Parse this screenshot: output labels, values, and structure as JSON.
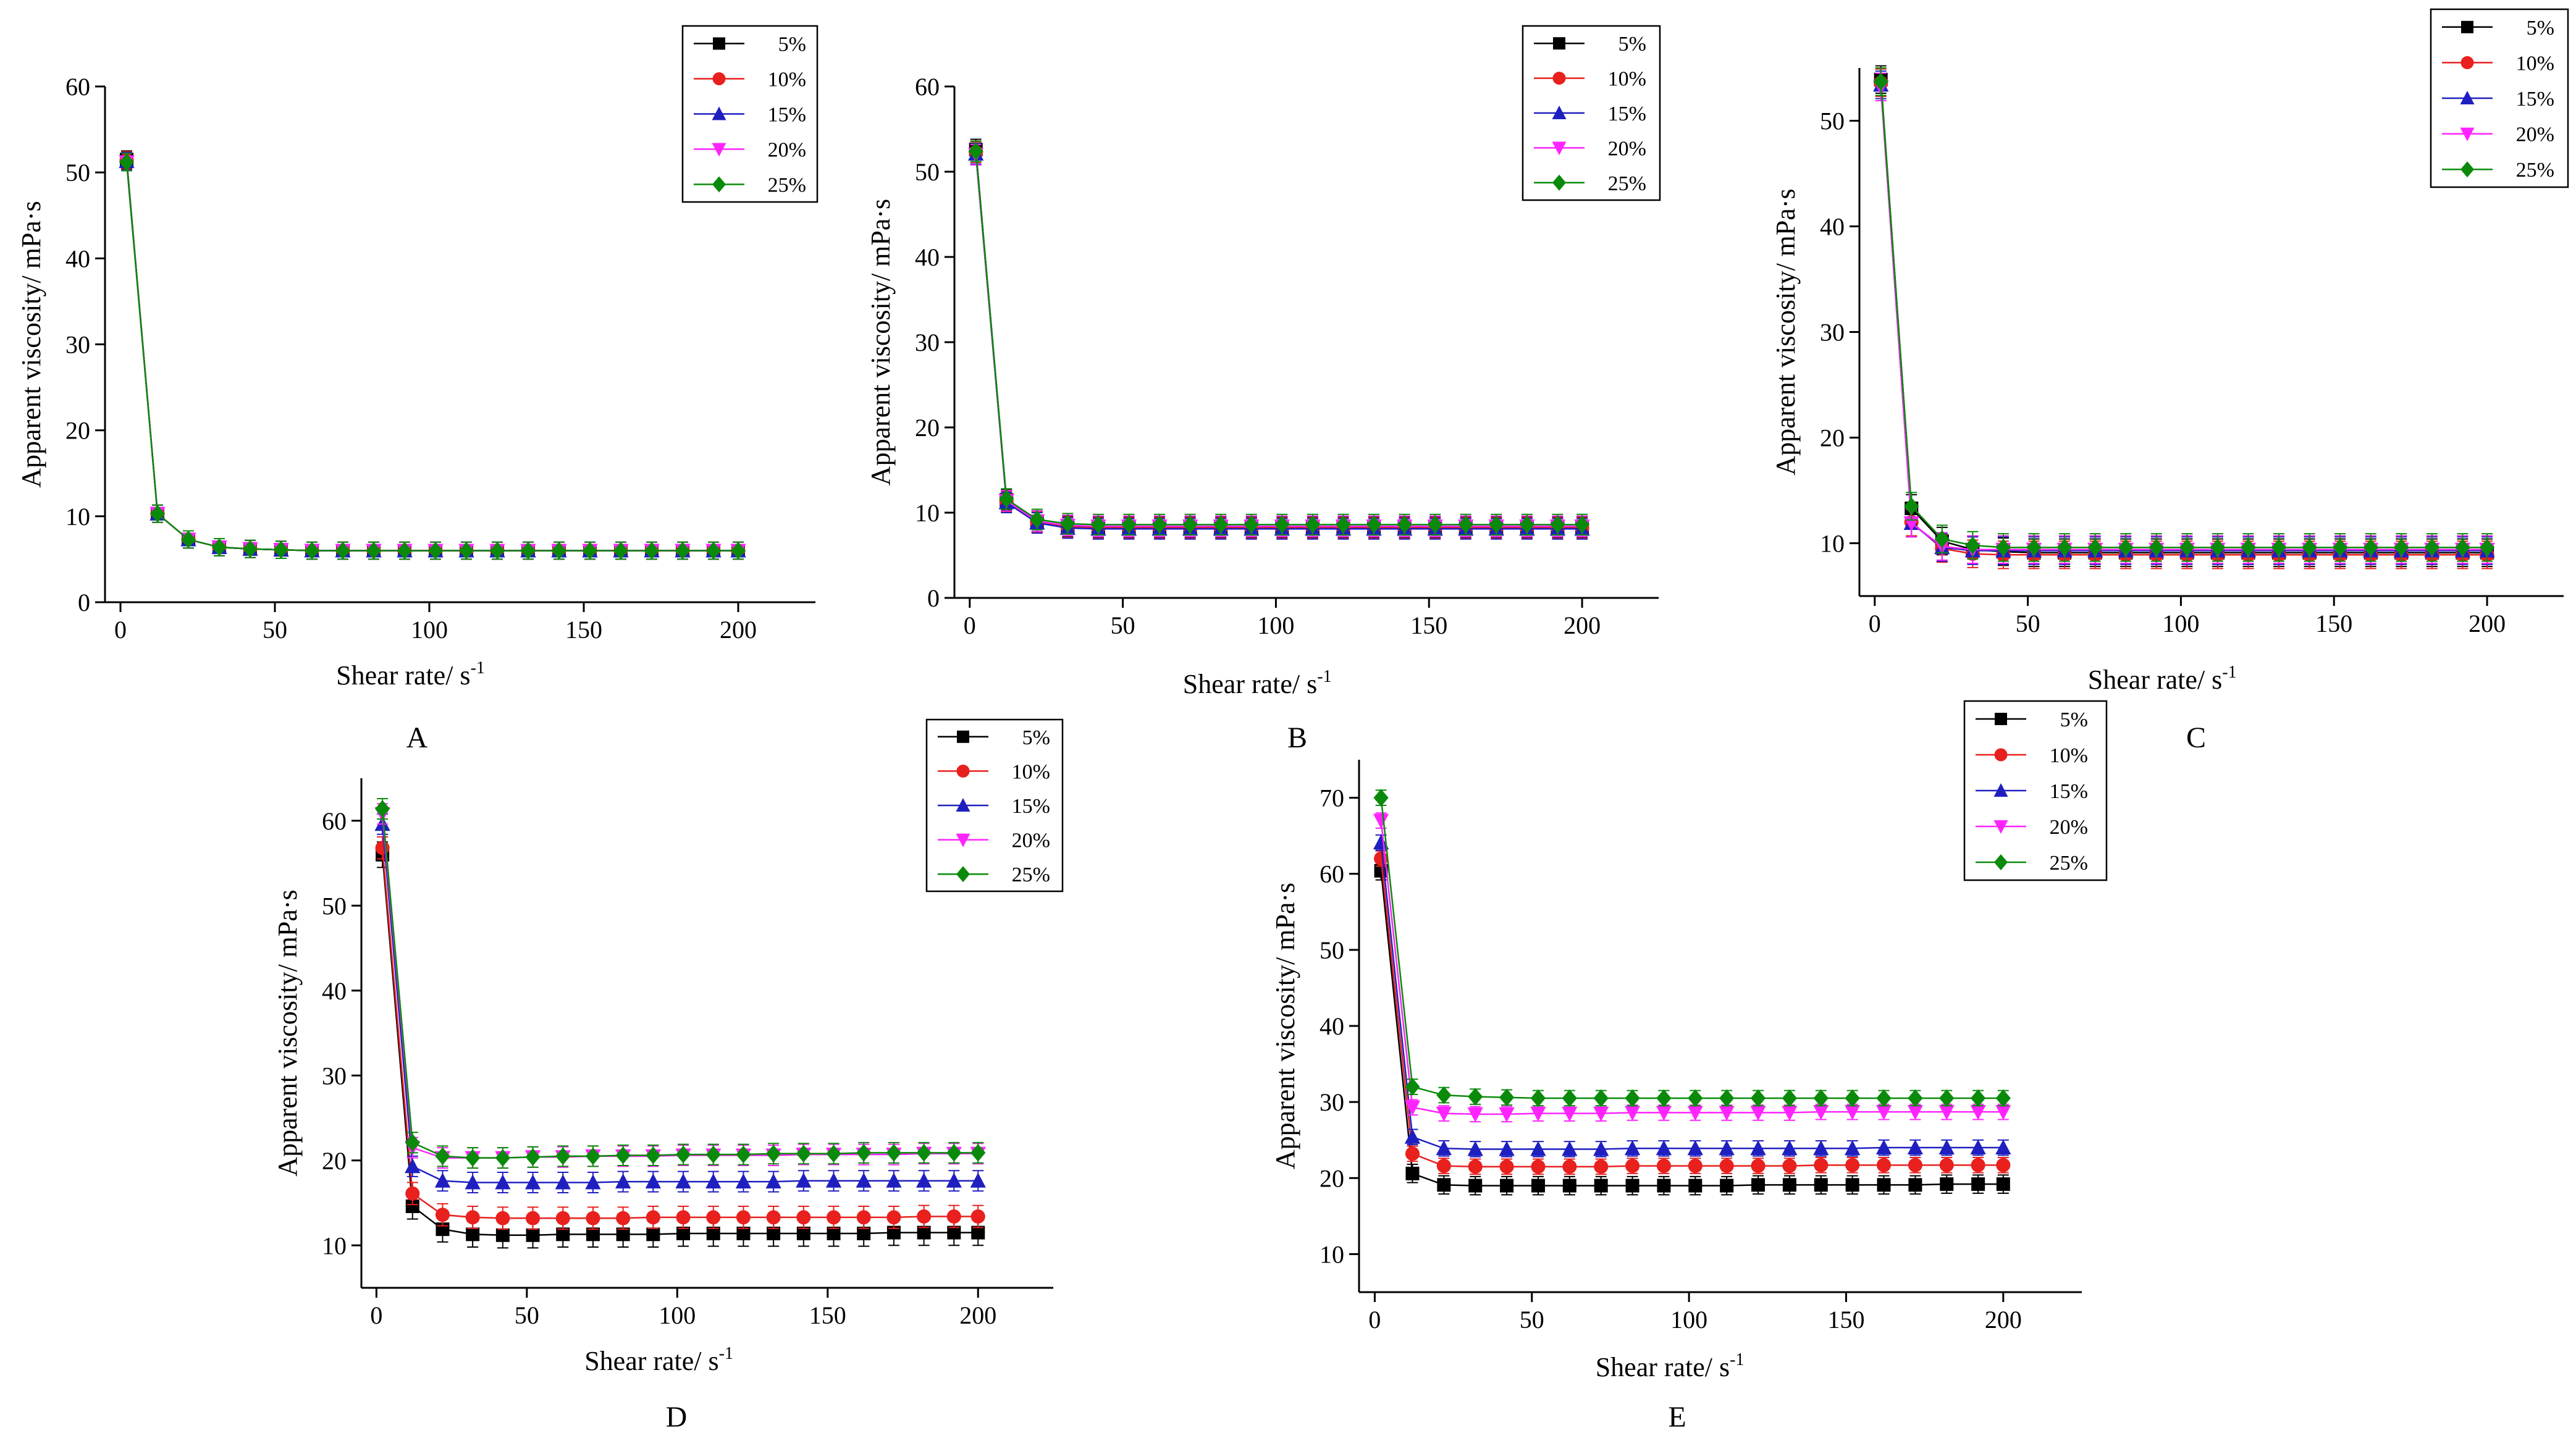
{
  "figure": {
    "legend_entries": [
      "5%",
      "10%",
      "15%",
      "20%",
      "25%"
    ],
    "series_colors": [
      "#000000",
      "#e8201e",
      "#1f1fc0",
      "#ff24ff",
      "#0a8a0a"
    ],
    "marker_types": [
      "square",
      "circle",
      "triangle-up",
      "triangle-down",
      "diamond"
    ]
  },
  "chart_data": [
    {
      "panel": "A",
      "type": "line",
      "xlabel": "Shear rate/ s",
      "xlabel_sup": "-1",
      "ylabel": "Apparent viscosity/ mPa·s",
      "xlim": [
        -5,
        225
      ],
      "ylim": [
        0,
        60
      ],
      "xticks": [
        0,
        50,
        100,
        150,
        200
      ],
      "yticks": [
        0,
        10,
        20,
        30,
        40,
        50,
        60
      ],
      "legend_position": "top-right",
      "x": [
        2,
        12,
        22,
        32,
        42,
        52,
        62,
        72,
        82,
        92,
        102,
        112,
        122,
        132,
        142,
        152,
        162,
        172,
        182,
        192,
        200
      ],
      "series": [
        {
          "name": "5%",
          "values": [
            51.5,
            10.3,
            7.3,
            6.4,
            6.2,
            6.1,
            6.0,
            6.0,
            6.0,
            6.0,
            6.0,
            6.0,
            6.0,
            6.0,
            6.0,
            6.0,
            6.0,
            6.0,
            6.0,
            6.0,
            6.0
          ],
          "error": 1.0
        },
        {
          "name": "10%",
          "values": [
            51.4,
            10.3,
            7.3,
            6.4,
            6.2,
            6.1,
            6.0,
            6.0,
            6.0,
            6.0,
            6.0,
            6.0,
            6.0,
            6.0,
            6.0,
            6.0,
            6.0,
            6.0,
            6.0,
            6.0,
            6.0
          ],
          "error": 1.0
        },
        {
          "name": "15%",
          "values": [
            51.3,
            10.3,
            7.3,
            6.4,
            6.2,
            6.1,
            6.0,
            6.0,
            6.0,
            6.0,
            6.0,
            6.0,
            6.0,
            6.0,
            6.0,
            6.0,
            6.0,
            6.0,
            6.0,
            6.0,
            6.0
          ],
          "error": 1.0
        },
        {
          "name": "20%",
          "values": [
            51.2,
            10.3,
            7.3,
            6.4,
            6.2,
            6.1,
            6.0,
            6.0,
            6.0,
            6.0,
            6.0,
            6.0,
            6.0,
            6.0,
            6.0,
            6.0,
            6.0,
            6.0,
            6.0,
            6.0,
            6.0
          ],
          "error": 1.0
        },
        {
          "name": "25%",
          "values": [
            51.2,
            10.3,
            7.3,
            6.4,
            6.2,
            6.1,
            6.0,
            6.0,
            6.0,
            6.0,
            6.0,
            6.0,
            6.0,
            6.0,
            6.0,
            6.0,
            6.0,
            6.0,
            6.0,
            6.0,
            6.0
          ],
          "error": 1.0
        }
      ]
    },
    {
      "panel": "B",
      "type": "line",
      "xlabel": "Shear rate/ s",
      "xlabel_sup": "-1",
      "ylabel": "Apparent viscosity/ mPa·s",
      "xlim": [
        -5,
        225
      ],
      "ylim": [
        0,
        60
      ],
      "xticks": [
        0,
        50,
        100,
        150,
        200
      ],
      "yticks": [
        0,
        10,
        20,
        30,
        40,
        50,
        60
      ],
      "legend_position": "top-right",
      "x": [
        2,
        12,
        22,
        32,
        42,
        52,
        62,
        72,
        82,
        92,
        102,
        112,
        122,
        132,
        142,
        152,
        162,
        172,
        182,
        192,
        200
      ],
      "series": [
        {
          "name": "5%",
          "values": [
            52.6,
            11.5,
            9.0,
            8.4,
            8.3,
            8.3,
            8.3,
            8.3,
            8.3,
            8.3,
            8.3,
            8.3,
            8.3,
            8.3,
            8.3,
            8.3,
            8.3,
            8.3,
            8.3,
            8.3,
            8.3
          ],
          "error": 1.2
        },
        {
          "name": "10%",
          "values": [
            52.3,
            11.3,
            8.9,
            8.3,
            8.2,
            8.2,
            8.2,
            8.2,
            8.2,
            8.2,
            8.2,
            8.2,
            8.2,
            8.2,
            8.2,
            8.2,
            8.2,
            8.2,
            8.2,
            8.2,
            8.2
          ],
          "error": 1.2
        },
        {
          "name": "15%",
          "values": [
            52.1,
            11.2,
            8.8,
            8.2,
            8.1,
            8.1,
            8.1,
            8.1,
            8.1,
            8.1,
            8.1,
            8.1,
            8.1,
            8.1,
            8.1,
            8.1,
            8.1,
            8.1,
            8.1,
            8.1,
            8.1
          ],
          "error": 1.2
        },
        {
          "name": "20%",
          "values": [
            52.0,
            11.4,
            9.0,
            8.5,
            8.4,
            8.4,
            8.4,
            8.4,
            8.4,
            8.4,
            8.4,
            8.4,
            8.4,
            8.4,
            8.4,
            8.4,
            8.4,
            8.4,
            8.4,
            8.4,
            8.4
          ],
          "error": 1.2
        },
        {
          "name": "25%",
          "values": [
            52.4,
            11.6,
            9.2,
            8.7,
            8.6,
            8.6,
            8.6,
            8.6,
            8.6,
            8.6,
            8.6,
            8.6,
            8.6,
            8.6,
            8.6,
            8.6,
            8.6,
            8.6,
            8.6,
            8.6,
            8.6
          ],
          "error": 1.2
        }
      ]
    },
    {
      "panel": "C",
      "type": "line",
      "xlabel": "Shear rate/ s",
      "xlabel_sup": "-1",
      "ylabel": "Apparent viscosity/ mPa·s",
      "xlim": [
        -5,
        225
      ],
      "ylim": [
        5,
        55
      ],
      "xticks": [
        0,
        50,
        100,
        150,
        200
      ],
      "yticks": [
        10,
        20,
        30,
        40,
        50
      ],
      "legend_position": "top-right",
      "x": [
        2,
        12,
        22,
        32,
        42,
        52,
        62,
        72,
        82,
        92,
        102,
        112,
        122,
        132,
        142,
        152,
        162,
        172,
        182,
        192,
        200
      ],
      "series": [
        {
          "name": "5%",
          "values": [
            53.9,
            13.3,
            10.2,
            9.4,
            9.2,
            9.1,
            9.1,
            9.1,
            9.1,
            9.1,
            9.1,
            9.1,
            9.1,
            9.1,
            9.1,
            9.1,
            9.1,
            9.1,
            9.1,
            9.1,
            9.1
          ],
          "error": 1.3
        },
        {
          "name": "10%",
          "values": [
            53.6,
            12.0,
            9.5,
            9.0,
            8.9,
            8.9,
            8.9,
            8.9,
            8.9,
            8.9,
            8.9,
            8.9,
            8.9,
            8.9,
            8.9,
            8.9,
            8.9,
            8.9,
            8.9,
            8.9,
            8.9
          ],
          "error": 1.3
        },
        {
          "name": "15%",
          "values": [
            53.4,
            11.9,
            9.6,
            9.3,
            9.3,
            9.3,
            9.3,
            9.3,
            9.3,
            9.3,
            9.3,
            9.3,
            9.3,
            9.3,
            9.3,
            9.3,
            9.3,
            9.3,
            9.3,
            9.3,
            9.3
          ],
          "error": 1.3
        },
        {
          "name": "20%",
          "values": [
            53.2,
            11.9,
            9.7,
            9.4,
            9.4,
            9.4,
            9.4,
            9.4,
            9.4,
            9.4,
            9.4,
            9.4,
            9.4,
            9.4,
            9.4,
            9.4,
            9.4,
            9.4,
            9.4,
            9.4,
            9.4
          ],
          "error": 1.3
        },
        {
          "name": "25%",
          "values": [
            53.7,
            13.5,
            10.4,
            9.8,
            9.6,
            9.6,
            9.6,
            9.6,
            9.6,
            9.6,
            9.6,
            9.6,
            9.6,
            9.6,
            9.6,
            9.6,
            9.6,
            9.6,
            9.6,
            9.6,
            9.6
          ],
          "error": 1.3
        }
      ]
    },
    {
      "panel": "D",
      "type": "line",
      "xlabel": "Shear rate/ s",
      "xlabel_sup": "-1",
      "ylabel": "Apparent viscosity/ mPa·s",
      "xlim": [
        -5,
        225
      ],
      "ylim": [
        5,
        65
      ],
      "xticks": [
        0,
        50,
        100,
        150,
        200
      ],
      "yticks": [
        10,
        20,
        30,
        40,
        50,
        60
      ],
      "legend_position": "top-right",
      "x": [
        2,
        12,
        22,
        32,
        42,
        52,
        62,
        72,
        82,
        92,
        102,
        112,
        122,
        132,
        142,
        152,
        162,
        172,
        182,
        192,
        200
      ],
      "series": [
        {
          "name": "5%",
          "values": [
            56.0,
            14.6,
            11.9,
            11.3,
            11.2,
            11.2,
            11.3,
            11.3,
            11.3,
            11.3,
            11.4,
            11.4,
            11.4,
            11.4,
            11.4,
            11.4,
            11.4,
            11.5,
            11.5,
            11.5,
            11.5
          ],
          "error": 1.5
        },
        {
          "name": "10%",
          "values": [
            56.8,
            16.1,
            13.6,
            13.3,
            13.2,
            13.2,
            13.2,
            13.2,
            13.2,
            13.3,
            13.3,
            13.3,
            13.3,
            13.3,
            13.3,
            13.3,
            13.3,
            13.3,
            13.4,
            13.4,
            13.4
          ],
          "error": 1.3
        },
        {
          "name": "15%",
          "values": [
            59.6,
            19.3,
            17.6,
            17.4,
            17.4,
            17.4,
            17.4,
            17.4,
            17.5,
            17.5,
            17.5,
            17.5,
            17.5,
            17.5,
            17.6,
            17.6,
            17.6,
            17.6,
            17.6,
            17.6,
            17.6
          ],
          "error": 1.2
        },
        {
          "name": "20%",
          "values": [
            60.8,
            21.5,
            20.3,
            20.3,
            20.3,
            20.4,
            20.4,
            20.5,
            20.5,
            20.5,
            20.6,
            20.6,
            20.6,
            20.6,
            20.7,
            20.7,
            20.7,
            20.7,
            20.8,
            20.8,
            20.8
          ],
          "error": 1.2
        },
        {
          "name": "25%",
          "values": [
            61.4,
            22.1,
            20.5,
            20.3,
            20.3,
            20.4,
            20.5,
            20.5,
            20.6,
            20.6,
            20.7,
            20.7,
            20.7,
            20.8,
            20.8,
            20.8,
            20.9,
            20.9,
            20.9,
            20.9,
            20.9
          ],
          "error": 1.2
        }
      ]
    },
    {
      "panel": "E",
      "type": "line",
      "xlabel": "Shear rate/ s",
      "xlabel_sup": "-1",
      "ylabel": "Apparent viscosity/ mPa·s",
      "xlim": [
        -5,
        225
      ],
      "ylim": [
        5,
        75
      ],
      "xticks": [
        0,
        50,
        100,
        150,
        200
      ],
      "yticks": [
        10,
        20,
        30,
        40,
        50,
        60,
        70
      ],
      "legend_position": "top-left",
      "x": [
        2,
        12,
        22,
        32,
        42,
        52,
        62,
        72,
        82,
        92,
        102,
        112,
        122,
        132,
        142,
        152,
        162,
        172,
        182,
        192,
        200
      ],
      "series": [
        {
          "name": "5%",
          "values": [
            60.4,
            20.6,
            19.1,
            19.0,
            19.0,
            19.0,
            19.0,
            19.0,
            19.0,
            19.0,
            19.0,
            19.0,
            19.1,
            19.1,
            19.1,
            19.1,
            19.1,
            19.1,
            19.2,
            19.2,
            19.2
          ],
          "error": 1.2
        },
        {
          "name": "10%",
          "values": [
            62.0,
            23.2,
            21.6,
            21.5,
            21.5,
            21.5,
            21.5,
            21.5,
            21.6,
            21.6,
            21.6,
            21.6,
            21.6,
            21.6,
            21.7,
            21.7,
            21.7,
            21.7,
            21.7,
            21.7,
            21.7
          ],
          "error": 1.0
        },
        {
          "name": "15%",
          "values": [
            64.1,
            25.4,
            23.9,
            23.8,
            23.8,
            23.8,
            23.8,
            23.8,
            23.9,
            23.9,
            23.9,
            23.9,
            23.9,
            23.9,
            23.9,
            23.9,
            24.0,
            24.0,
            24.0,
            24.0,
            24.0
          ],
          "error": 1.0
        },
        {
          "name": "20%",
          "values": [
            67.0,
            29.3,
            28.5,
            28.4,
            28.4,
            28.5,
            28.5,
            28.5,
            28.6,
            28.6,
            28.6,
            28.6,
            28.6,
            28.6,
            28.7,
            28.7,
            28.7,
            28.7,
            28.7,
            28.7,
            28.7
          ],
          "error": 1.0
        },
        {
          "name": "25%",
          "values": [
            70.0,
            32.0,
            30.9,
            30.7,
            30.6,
            30.5,
            30.5,
            30.5,
            30.5,
            30.5,
            30.5,
            30.5,
            30.5,
            30.5,
            30.5,
            30.5,
            30.5,
            30.5,
            30.5,
            30.5,
            30.5
          ],
          "error": 1.0
        }
      ]
    }
  ]
}
